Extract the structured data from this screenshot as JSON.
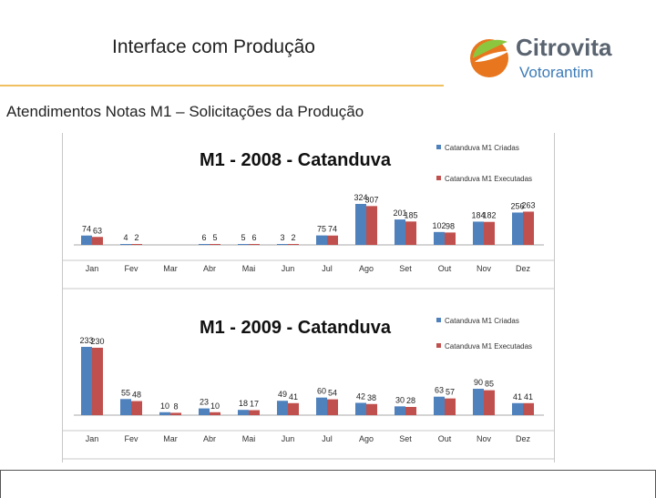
{
  "slide": {
    "title": "Interface com Produção",
    "subtitle": "Atendimentos Notas M1 – Solicitações da Produção"
  },
  "logo": {
    "brand": "Citrovita",
    "sub": "Votorantim",
    "colors": {
      "orange": "#e8761e",
      "green": "#8cc63f",
      "text": "#5a6470"
    }
  },
  "colors": {
    "created": "#4f81bd",
    "executed": "#c0504d"
  },
  "chart_data": [
    {
      "type": "bar",
      "title": "M1 - 2008 - Catanduva",
      "categories": [
        "Jan",
        "Fev",
        "Mar",
        "Abr",
        "Mai",
        "Jun",
        "Jul",
        "Ago",
        "Set",
        "Out",
        "Nov",
        "Dez"
      ],
      "series": [
        {
          "name": "Catanduva M1 Criadas",
          "values": [
            74,
            4,
            null,
            6,
            5,
            3,
            75,
            324,
            201,
            102,
            184,
            256
          ]
        },
        {
          "name": "Catanduva M1 Executadas",
          "values": [
            63,
            2,
            null,
            5,
            6,
            2,
            74,
            307,
            185,
            98,
            182,
            263
          ]
        }
      ],
      "legend": "top-right"
    },
    {
      "type": "bar",
      "title": "M1 - 2009 - Catanduva",
      "categories": [
        "Jan",
        "Fev",
        "Mar",
        "Abr",
        "Mai",
        "Jun",
        "Jul",
        "Ago",
        "Set",
        "Out",
        "Nov",
        "Dez"
      ],
      "series": [
        {
          "name": "Catanduva M1 Criadas",
          "values": [
            233,
            55,
            10,
            23,
            18,
            49,
            60,
            42,
            30,
            63,
            90,
            41
          ]
        },
        {
          "name": "Catanduva M1 Executadas",
          "values": [
            230,
            48,
            8,
            10,
            17,
            41,
            54,
            38,
            28,
            57,
            85,
            41
          ]
        }
      ],
      "legend": "top-right"
    }
  ]
}
